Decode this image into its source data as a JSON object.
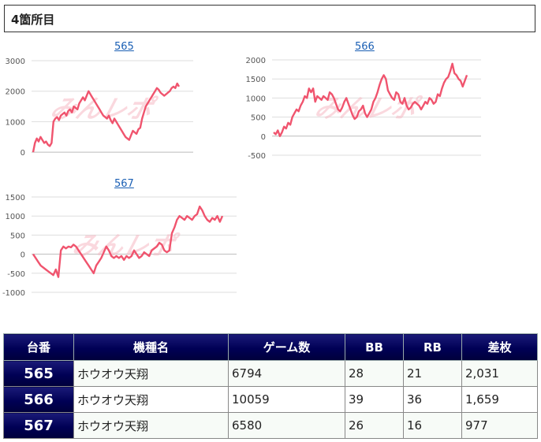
{
  "section_title": "4箇所目",
  "watermark": "みんレポ",
  "charts": [
    {
      "machine": "565",
      "yticks": [
        "3000",
        "2000",
        "1000",
        "0"
      ],
      "chart_data": {
        "type": "line",
        "title": "565",
        "ylim": [
          -100,
          3000
        ],
        "y_ticks": [
          0,
          1000,
          2000,
          3000
        ],
        "grid": true,
        "values": [
          0,
          300,
          450,
          350,
          500,
          400,
          300,
          350,
          250,
          200,
          300,
          1000,
          1100,
          1150,
          1050,
          1200,
          1250,
          1300,
          1200,
          1350,
          1400,
          1300,
          1500,
          1450,
          1400,
          1600,
          1700,
          1800,
          1700,
          1850,
          2000,
          1900,
          1800,
          1700,
          1600,
          1500,
          1400,
          1300,
          1200,
          1150,
          1100,
          1200,
          1050,
          950,
          1100,
          1000,
          900,
          800,
          700,
          600,
          500,
          450,
          400,
          550,
          700,
          650,
          600,
          750,
          800,
          1100,
          1300,
          1500,
          1600,
          1700,
          1800,
          1900,
          2000,
          2100,
          2050,
          1950,
          1900,
          1850,
          1900,
          1950,
          2000,
          2100,
          2150,
          2100,
          2250,
          2150
        ]
      }
    },
    {
      "machine": "566",
      "yticks": [
        "2000",
        "1500",
        "1000",
        "500",
        "0",
        "-500"
      ],
      "chart_data": {
        "type": "line",
        "title": "566",
        "ylim": [
          -500,
          2000
        ],
        "y_ticks": [
          -500,
          0,
          500,
          1000,
          1500,
          2000
        ],
        "grid": true,
        "values": [
          100,
          50,
          150,
          0,
          100,
          250,
          200,
          350,
          300,
          500,
          600,
          700,
          650,
          800,
          900,
          1050,
          1000,
          1250,
          1150,
          1250,
          900,
          1050,
          1000,
          950,
          1050,
          1000,
          950,
          1150,
          1100,
          1000,
          850,
          700,
          650,
          750,
          900,
          1000,
          850,
          700,
          550,
          450,
          500,
          650,
          700,
          800,
          600,
          500,
          600,
          700,
          900,
          1000,
          1150,
          1350,
          1500,
          1600,
          1500,
          1200,
          1100,
          1000,
          950,
          1150,
          1100,
          900,
          850,
          1000,
          800,
          700,
          750,
          850,
          900,
          850,
          800,
          700,
          800,
          900,
          850,
          1000,
          950,
          850,
          900,
          1100,
          1050,
          1250,
          1400,
          1500,
          1550,
          1700,
          1900,
          1650,
          1600,
          1500,
          1450,
          1300,
          1450,
          1600
        ]
      }
    },
    {
      "machine": "567",
      "yticks": [
        "1500",
        "1000",
        "500",
        "0",
        "-500",
        "-1000"
      ],
      "chart_data": {
        "type": "line",
        "title": "567",
        "ylim": [
          -1000,
          1500
        ],
        "y_ticks": [
          -1000,
          -500,
          0,
          500,
          1000,
          1500
        ],
        "grid": true,
        "values": [
          0,
          -100,
          -200,
          -300,
          -350,
          -400,
          -450,
          -500,
          -550,
          -400,
          -600,
          100,
          200,
          150,
          200,
          180,
          250,
          200,
          100,
          0,
          -100,
          -200,
          -300,
          -400,
          -500,
          -300,
          -200,
          -100,
          50,
          200,
          100,
          -50,
          -100,
          -50,
          -100,
          -50,
          -150,
          -50,
          -100,
          -50,
          100,
          0,
          -100,
          -50,
          50,
          0,
          -50,
          100,
          150,
          200,
          300,
          250,
          100,
          50,
          100,
          550,
          700,
          900,
          1000,
          950,
          900,
          1000,
          950,
          900,
          1000,
          1050,
          1250,
          1150,
          1000,
          900,
          850,
          950,
          900,
          1000,
          850,
          1000
        ]
      }
    }
  ],
  "table": {
    "headers": [
      "台番",
      "機種名",
      "ゲーム数",
      "BB",
      "RB",
      "差枚"
    ],
    "rows": [
      [
        "565",
        "ホウオウ天翔",
        "6794",
        "28",
        "21",
        "2,031"
      ],
      [
        "566",
        "ホウオウ天翔",
        "10059",
        "39",
        "36",
        "1,659"
      ],
      [
        "567",
        "ホウオウ天翔",
        "6580",
        "26",
        "16",
        "977"
      ]
    ]
  },
  "colors": {
    "line": "#f0546e",
    "grid": "#dddddd",
    "axis_text": "#555555",
    "link": "#1a5fb4",
    "header_bg": "#00005a"
  }
}
